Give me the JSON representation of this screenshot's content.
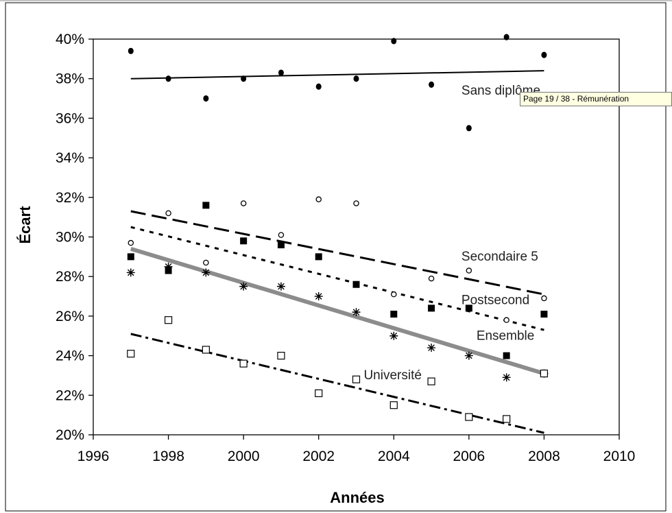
{
  "chart_data": {
    "type": "scatter",
    "xlabel": "Années",
    "ylabel": "Écart",
    "xlim": [
      1996,
      2010
    ],
    "ylim": [
      0.2,
      0.4
    ],
    "x_ticks": [
      1996,
      1998,
      2000,
      2002,
      2004,
      2006,
      2008,
      2010
    ],
    "y_ticks": [
      0.2,
      0.22,
      0.24,
      0.26,
      0.28,
      0.3,
      0.32,
      0.34,
      0.36,
      0.38,
      0.4
    ],
    "y_tick_labels": [
      "20%",
      "22%",
      "24%",
      "26%",
      "28%",
      "30%",
      "32%",
      "34%",
      "36%",
      "38%",
      "40%"
    ],
    "x_tick_labels": [
      "1996",
      "1998",
      "2000",
      "2002",
      "2004",
      "2006",
      "2008",
      "2010"
    ],
    "years": [
      1997,
      1998,
      1999,
      2000,
      2001,
      2002,
      2003,
      2004,
      2005,
      2006,
      2007,
      2008
    ],
    "series": [
      {
        "key": "sans",
        "name": "Sans diplôme",
        "marker": "filled-circle",
        "values": [
          0.394,
          0.38,
          0.37,
          0.38,
          0.383,
          0.376,
          0.38,
          0.399,
          0.377,
          0.355,
          0.401,
          0.392
        ],
        "trend": {
          "x": [
            1997,
            2008
          ],
          "y": [
            0.38,
            0.384
          ],
          "style": "solid"
        }
      },
      {
        "key": "sec5",
        "name": "Secondaire 5",
        "marker": "filled-square",
        "values": [
          0.29,
          0.283,
          0.316,
          0.298,
          0.296,
          0.29,
          0.276,
          0.261,
          0.264,
          0.264,
          0.24,
          0.261
        ],
        "trend": {
          "x": [
            1997,
            2008
          ],
          "y": [
            0.313,
            0.271
          ],
          "style": "long-dash"
        }
      },
      {
        "key": "post",
        "name": "Postsecond",
        "marker": "open-circle",
        "values": [
          0.297,
          0.312,
          0.287,
          0.317,
          0.301,
          0.319,
          0.317,
          0.271,
          0.279,
          0.283,
          0.258,
          0.269
        ],
        "trend": {
          "x": [
            1997,
            2008
          ],
          "y": [
            0.305,
            0.253
          ],
          "style": "short-dash"
        }
      },
      {
        "key": "ens",
        "name": "Ensemble",
        "marker": "asterisk",
        "values": [
          0.282,
          0.285,
          0.282,
          0.275,
          0.275,
          0.27,
          0.262,
          0.25,
          0.244,
          0.24,
          0.229,
          0.231
        ],
        "trend": {
          "x": [
            1997,
            2008
          ],
          "y": [
            0.294,
            0.231
          ],
          "style": "thick-gray"
        }
      },
      {
        "key": "univ",
        "name": "Université",
        "marker": "open-square",
        "values": [
          0.241,
          0.258,
          0.243,
          0.236,
          0.24,
          0.221,
          0.228,
          0.215,
          0.227,
          0.209,
          0.208,
          0.231
        ],
        "trend": {
          "x": [
            1997,
            2008
          ],
          "y": [
            0.251,
            0.201
          ],
          "style": "dash-dot"
        }
      }
    ],
    "labels": [
      {
        "text": "Sans diplôme",
        "x": 2005.8,
        "y": 0.372
      },
      {
        "text": "Secondaire 5",
        "x": 2005.8,
        "y": 0.288
      },
      {
        "text": "Postsecond",
        "x": 2005.8,
        "y": 0.266
      },
      {
        "text": "Ensemble",
        "x": 2006.2,
        "y": 0.248
      },
      {
        "text": "Université",
        "x": 2003.2,
        "y": 0.228
      }
    ],
    "grid": false,
    "legend": "none"
  },
  "tooltip": {
    "text": "Page 19 / 38  - Rémunération"
  },
  "colors": {
    "ensemble_trend": "#8c8c8c",
    "markers": "#000000",
    "tooltip_bg": "#ffffe1"
  }
}
